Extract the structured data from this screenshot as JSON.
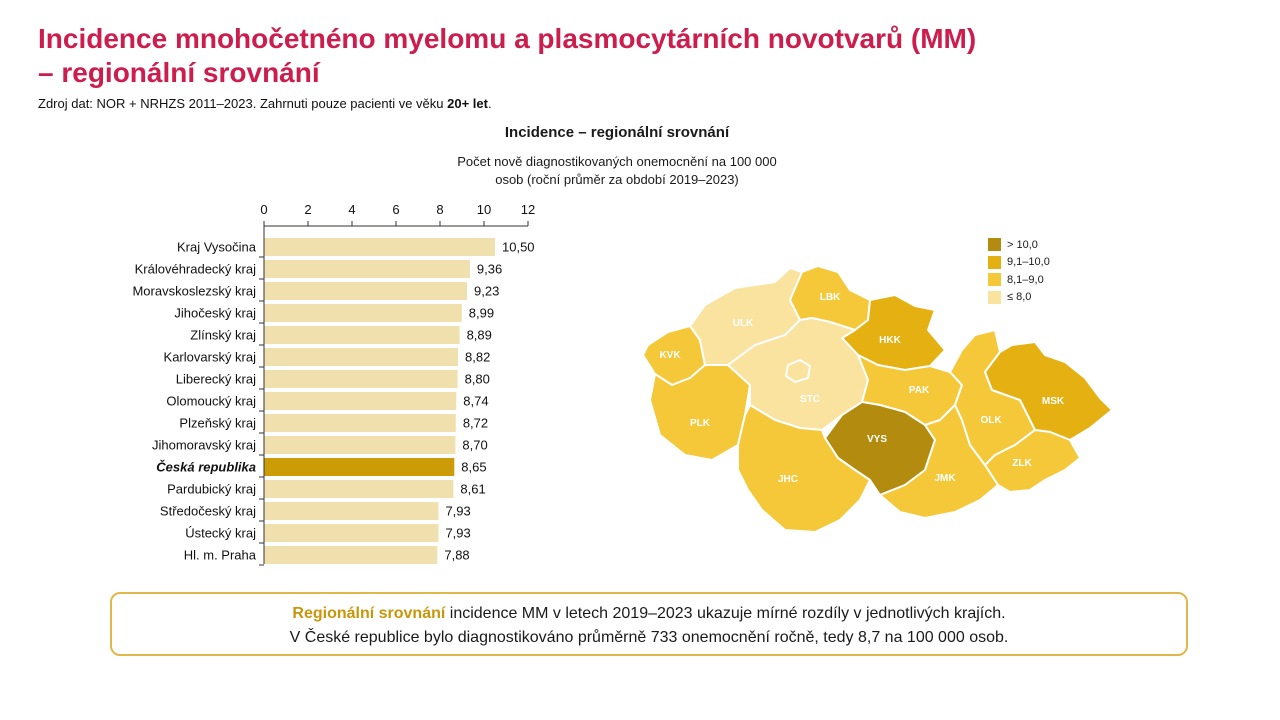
{
  "title": {
    "line1": "Incidence mnohočetnéno myelomu a plasmocytárních novotvarů (MM)",
    "line2": "– regionální srovnání"
  },
  "source": {
    "text": "Zdroj dat: NOR + NRHZS 2011–2023. Zahrnuti pouze pacienti ve věku ",
    "bold": "20+ let",
    "end": "."
  },
  "chart_data": {
    "type": "bar",
    "orientation": "horizontal",
    "title": "Incidence – regionální srovnání",
    "subtitle_line1": "Počet nově diagnostikovaných onemocnění na 100 000",
    "subtitle_line2": "osob (roční průměr za období 2019–2023)",
    "xlim": [
      0,
      12
    ],
    "xticks": [
      "0",
      "2",
      "4",
      "6",
      "8",
      "10",
      "12"
    ],
    "xaxis_position": "top",
    "categories": [
      "Kraj Vysočina",
      "Královéhradecký kraj",
      "Moravskoslezský kraj",
      "Jihočeský kraj",
      "Zlínský kraj",
      "Karlovarský kraj",
      "Liberecký kraj",
      "Olomoucký kraj",
      "Plzeňský kraj",
      "Jihomoravský kraj",
      "Česká republika",
      "Pardubický kraj",
      "Středočeský kraj",
      "Ústecký kraj",
      "Hl. m. Praha"
    ],
    "values": [
      10.5,
      9.36,
      9.23,
      8.99,
      8.89,
      8.82,
      8.8,
      8.74,
      8.72,
      8.7,
      8.65,
      8.61,
      7.93,
      7.93,
      7.88
    ],
    "value_labels": [
      "10,50",
      "9,36",
      "9,23",
      "8,99",
      "8,89",
      "8,82",
      "8,80",
      "8,74",
      "8,72",
      "8,70",
      "8,65",
      "8,61",
      "7,93",
      "7,93",
      "7,88"
    ],
    "highlight_category": "Česká republika",
    "bar_color": "#f0e0ae",
    "highlight_color": "#cc9c06"
  },
  "map": {
    "legend": [
      {
        "label": "> 10,0",
        "color": "#b38b0e"
      },
      {
        "label": "9,1–10,0",
        "color": "#e4b012"
      },
      {
        "label": "8,1–9,0",
        "color": "#f5c83a"
      },
      {
        "label": "≤ 8,0",
        "color": "#fae29f"
      }
    ],
    "regions": [
      {
        "code": "KVK",
        "cls": "8,1–9,0"
      },
      {
        "code": "ULK",
        "cls": "≤ 8,0"
      },
      {
        "code": "LBK",
        "cls": "8,1–9,0"
      },
      {
        "code": "HKK",
        "cls": "9,1–10,0"
      },
      {
        "code": "PLK",
        "cls": "8,1–9,0"
      },
      {
        "code": "STC",
        "cls": "≤ 8,0"
      },
      {
        "code": "PAK",
        "cls": "8,1–9,0"
      },
      {
        "code": "VYS",
        "cls": "> 10,0"
      },
      {
        "code": "JHC",
        "cls": "8,1–9,0"
      },
      {
        "code": "JMK",
        "cls": "8,1–9,0"
      },
      {
        "code": "OLK",
        "cls": "8,1–9,0"
      },
      {
        "code": "MSK",
        "cls": "9,1–10,0"
      },
      {
        "code": "ZLK",
        "cls": "8,1–9,0"
      }
    ]
  },
  "note": {
    "highlight": "Regionální srovnání",
    "line1_rest": " incidence MM v letech 2019–2023 ukazuje mírné rozdíly v jednotlivých krajích.",
    "line2": "V České republice bylo diagnostikováno průměrně 733 onemocnění ročně, tedy 8,7 na 100 000 osob."
  }
}
